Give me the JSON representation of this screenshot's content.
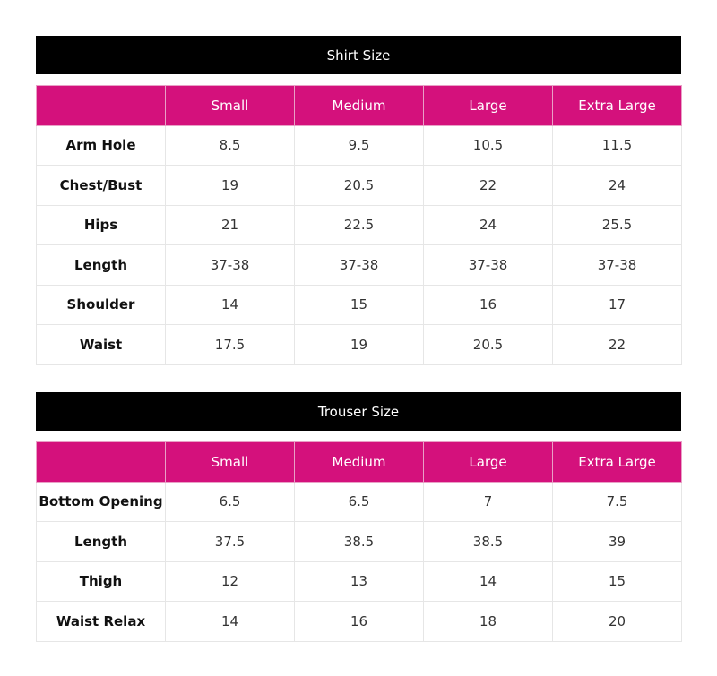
{
  "columns": [
    "",
    "Small",
    "Medium",
    "Large",
    "Extra Large"
  ],
  "shirt": {
    "title": "Shirt Size",
    "rows": [
      [
        "Arm Hole",
        "8.5",
        "9.5",
        "10.5",
        "11.5"
      ],
      [
        "Chest/Bust",
        "19",
        "20.5",
        "22",
        "24"
      ],
      [
        "Hips",
        "21",
        "22.5",
        "24",
        "25.5"
      ],
      [
        "Length",
        "37-38",
        "37-38",
        "37-38",
        "37-38"
      ],
      [
        "Shoulder",
        "14",
        "15",
        "16",
        "17"
      ],
      [
        "Waist",
        "17.5",
        "19",
        "20.5",
        "22"
      ]
    ]
  },
  "trouser": {
    "title": "Trouser Size",
    "rows": [
      [
        "Bottom Opening",
        "6.5",
        "6.5",
        "7",
        "7.5"
      ],
      [
        "Length",
        "37.5",
        "38.5",
        "38.5",
        "39"
      ],
      [
        "Thigh",
        "12",
        "13",
        "14",
        "15"
      ],
      [
        "Waist Relax",
        "14",
        "16",
        "18",
        "20"
      ]
    ]
  },
  "colors": {
    "header_bg": "#d4117c",
    "title_bg": "#000000"
  }
}
